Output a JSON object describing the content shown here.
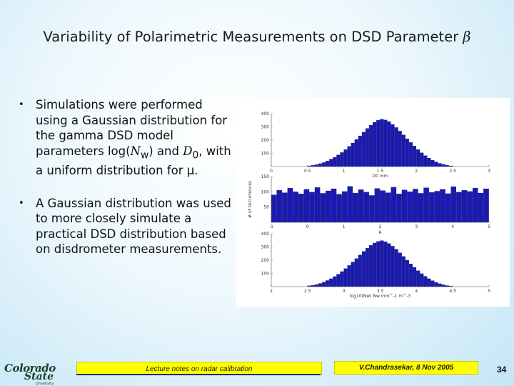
{
  "slide": {
    "title": "Variability of Polarimetric Measurements on DSD Parameter",
    "title_symbol": "β",
    "page_number": "34"
  },
  "bullets": [
    {
      "pre": "Simulations were performed using a Gaussian distribution for the gamma DSD model parameters log(",
      "nw": "N",
      "nw_sub": "w",
      "mid": ") and ",
      "d0": "D",
      "d0_sub": "0",
      "post": ", with a uniform distribution for ",
      "mu": "μ",
      "end": "."
    },
    {
      "text": "A Gaussian distribution was used to more closely simulate a practical DSD distribution based on disdrometer measurements."
    }
  ],
  "footer": {
    "left": "Lecture notes on radar calibration",
    "right": "V.Chandrasekar, 8 Nov 2005"
  },
  "logo": {
    "line1": "Colorado",
    "line2": "State",
    "line3": "University"
  },
  "chart_data": [
    {
      "type": "bar",
      "bar_color": "#1a1ab0",
      "xlabel": "D0 mm",
      "ylabel": "",
      "xlim": [
        0,
        3
      ],
      "ylim": [
        0,
        400
      ],
      "xticks": [
        "0",
        "0.5",
        "1",
        "1.5",
        "2",
        "2.5",
        "3"
      ],
      "xticks_vals": [
        0,
        0.5,
        1,
        1.5,
        2,
        2.5,
        3
      ],
      "yticks": [
        "100",
        "200",
        "300",
        "400"
      ],
      "yticks_vals": [
        100,
        200,
        300,
        400
      ],
      "bin_start": 0.5,
      "bin_width": 0.05,
      "values": [
        5,
        9,
        14,
        22,
        30,
        42,
        56,
        70,
        88,
        106,
        128,
        152,
        178,
        205,
        232,
        260,
        288,
        312,
        335,
        350,
        358,
        352,
        340,
        318,
        295,
        268,
        240,
        210,
        182,
        155,
        128,
        104,
        82,
        64,
        48,
        35,
        24,
        16,
        10,
        5
      ]
    },
    {
      "type": "bar",
      "bar_color": "#1a1ab0",
      "xlabel": "μ",
      "ylabel": "# of Occurrences",
      "xlim": [
        -1,
        5
      ],
      "ylim": [
        0,
        150
      ],
      "xticks": [
        "-1",
        "0",
        "1",
        "2",
        "3",
        "4",
        "5"
      ],
      "xticks_vals": [
        -1,
        0,
        1,
        2,
        3,
        4,
        5
      ],
      "yticks": [
        "50",
        "100",
        "150"
      ],
      "yticks_vals": [
        50,
        100,
        150
      ],
      "bin_start": -1,
      "bin_width": 0.15,
      "values": [
        90,
        105,
        97,
        112,
        100,
        93,
        108,
        99,
        114,
        95,
        103,
        110,
        92,
        101,
        118,
        96,
        107,
        99,
        88,
        111,
        104,
        97,
        115,
        93,
        106,
        100,
        109,
        95,
        113,
        98,
        102,
        108,
        94,
        117,
        99,
        105,
        101,
        112,
        96,
        110
      ]
    },
    {
      "type": "bar",
      "bar_color": "#1a1ab0",
      "xlabel": "log10(Nw) Nw mm^-1 m^-3",
      "ylabel": "",
      "xlim": [
        2,
        5
      ],
      "ylim": [
        0,
        400
      ],
      "xticks": [
        "2",
        "2.5",
        "3",
        "3.5",
        "4",
        "4.5",
        "5"
      ],
      "xticks_vals": [
        2,
        2.5,
        3,
        3.5,
        4,
        4.5,
        5
      ],
      "yticks": [
        "100",
        "200",
        "300",
        "400"
      ],
      "yticks_vals": [
        100,
        200,
        300,
        400
      ],
      "bin_start": 2.5,
      "bin_width": 0.05,
      "values": [
        6,
        10,
        16,
        24,
        34,
        46,
        60,
        76,
        94,
        114,
        136,
        160,
        186,
        212,
        240,
        266,
        290,
        312,
        330,
        342,
        348,
        340,
        326,
        306,
        282,
        256,
        228,
        200,
        172,
        146,
        120,
        98,
        78,
        60,
        45,
        32,
        22,
        14,
        8,
        4
      ]
    }
  ]
}
